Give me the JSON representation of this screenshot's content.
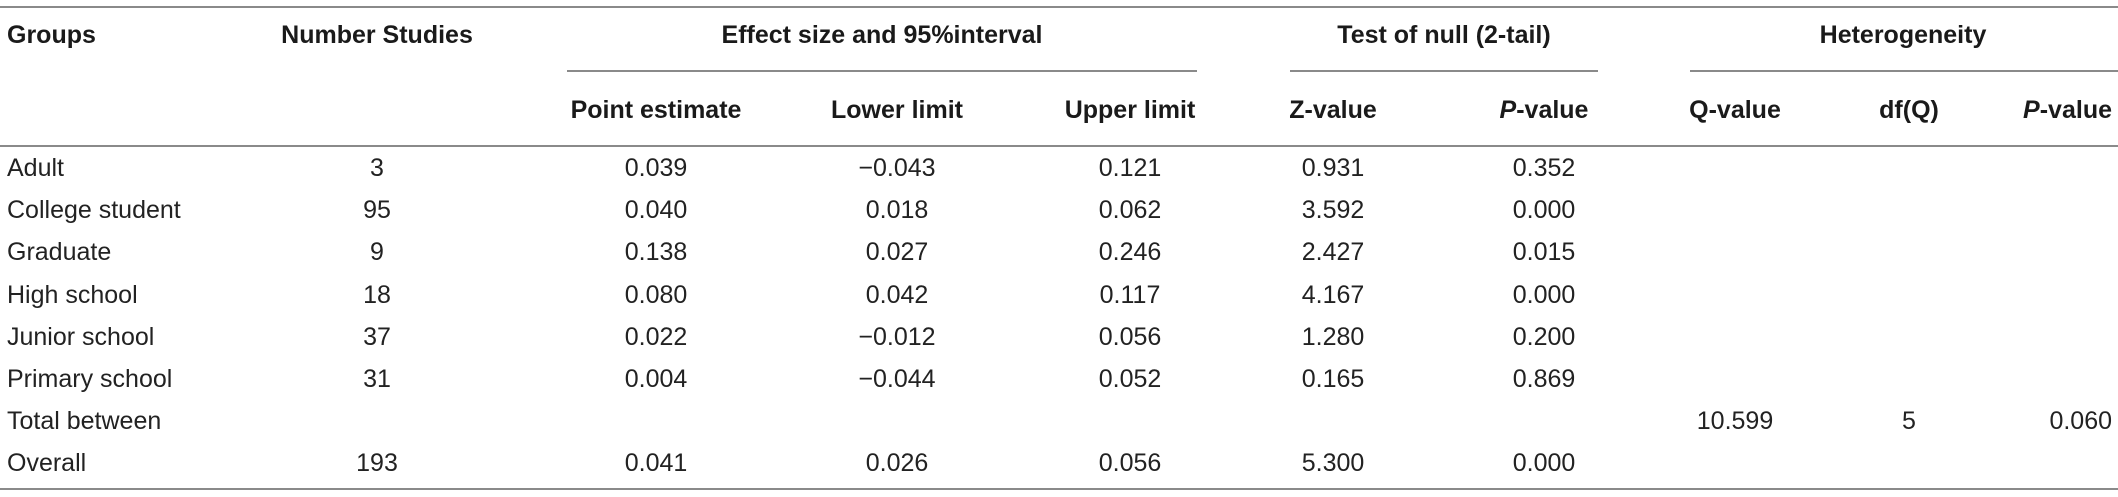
{
  "header": {
    "groups": "Groups",
    "number_studies": "Number Studies",
    "effect_group": "Effect size and 95%interval",
    "null_group": "Test of null (2-tail)",
    "het_group": "Heterogeneity",
    "point_estimate": "Point estimate",
    "lower_limit": "Lower limit",
    "upper_limit": "Upper limit",
    "z_value": "Z-value",
    "p_italic": "P",
    "p_suffix": "-value",
    "q_value": "Q-value",
    "df_q": "df(Q)",
    "p2_italic": "P",
    "p2_suffix": "-value"
  },
  "rows": [
    {
      "group": "Adult",
      "n": "3",
      "point": "0.039",
      "lower": "−0.043",
      "upper": "0.121",
      "z": "0.931",
      "p": "0.352",
      "q": "",
      "df": "",
      "hp": ""
    },
    {
      "group": "College student",
      "n": "95",
      "point": "0.040",
      "lower": "0.018",
      "upper": "0.062",
      "z": "3.592",
      "p": "0.000",
      "q": "",
      "df": "",
      "hp": ""
    },
    {
      "group": "Graduate",
      "n": "9",
      "point": "0.138",
      "lower": "0.027",
      "upper": "0.246",
      "z": "2.427",
      "p": "0.015",
      "q": "",
      "df": "",
      "hp": ""
    },
    {
      "group": "High school",
      "n": "18",
      "point": "0.080",
      "lower": "0.042",
      "upper": "0.117",
      "z": "4.167",
      "p": "0.000",
      "q": "",
      "df": "",
      "hp": ""
    },
    {
      "group": "Junior school",
      "n": "37",
      "point": "0.022",
      "lower": "−0.012",
      "upper": "0.056",
      "z": "1.280",
      "p": "0.200",
      "q": "",
      "df": "",
      "hp": ""
    },
    {
      "group": "Primary school",
      "n": "31",
      "point": "0.004",
      "lower": "−0.044",
      "upper": "0.052",
      "z": "0.165",
      "p": "0.869",
      "q": "",
      "df": "",
      "hp": ""
    },
    {
      "group": "Total between",
      "n": "",
      "point": "",
      "lower": "",
      "upper": "",
      "z": "",
      "p": "",
      "q": "10.599",
      "df": "5",
      "hp": "0.060"
    },
    {
      "group": "Overall",
      "n": "193",
      "point": "0.041",
      "lower": "0.026",
      "upper": "0.056",
      "z": "5.300",
      "p": "0.000",
      "q": "",
      "df": "",
      "hp": ""
    }
  ]
}
